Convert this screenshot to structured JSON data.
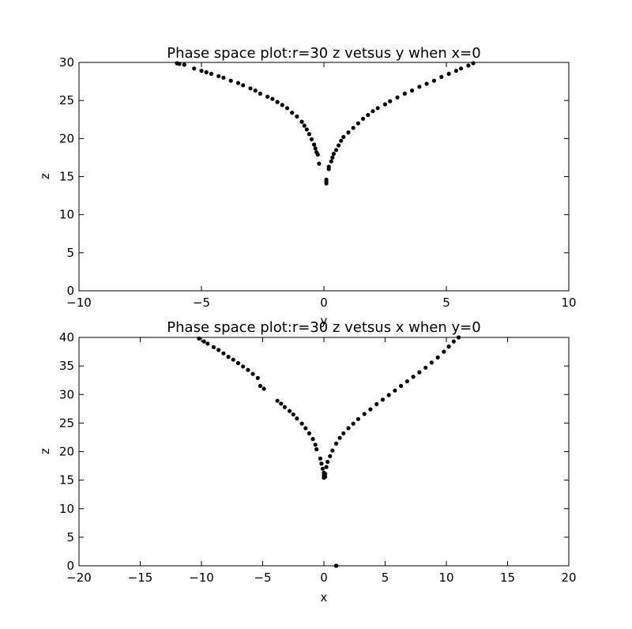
{
  "chart_data": [
    {
      "type": "scatter",
      "title": "Phase space plot:r=30 z vetsus y when x=0",
      "xlabel": "y",
      "ylabel": "z",
      "xlim": [
        -10,
        10
      ],
      "ylim": [
        0,
        30
      ],
      "xticks": [
        -10,
        -5,
        0,
        5,
        10
      ],
      "yticks": [
        0,
        5,
        10,
        15,
        20,
        25,
        30
      ],
      "xtick_labels": [
        "−10",
        "−5",
        "0",
        "5",
        "10"
      ],
      "ytick_labels": [
        "0",
        "5",
        "10",
        "15",
        "20",
        "25",
        "30"
      ],
      "grid": false,
      "marker_color": "#000000",
      "series": [
        {
          "points": [
            [
              -6.0,
              29.9
            ],
            [
              -5.9,
              29.8
            ],
            [
              -5.7,
              29.7
            ],
            [
              -5.3,
              29.2
            ],
            [
              -5.0,
              28.9
            ],
            [
              -4.8,
              28.7
            ],
            [
              -4.6,
              28.5
            ],
            [
              -4.3,
              28.2
            ],
            [
              -4.1,
              28.0
            ],
            [
              -3.8,
              27.6
            ],
            [
              -3.5,
              27.3
            ],
            [
              -3.3,
              27.0
            ],
            [
              -3.0,
              26.6
            ],
            [
              -2.8,
              26.3
            ],
            [
              -2.6,
              25.9
            ],
            [
              -2.3,
              25.5
            ],
            [
              -2.1,
              25.2
            ],
            [
              -1.9,
              24.8
            ],
            [
              -1.7,
              24.4
            ],
            [
              -1.5,
              24.0
            ],
            [
              -1.3,
              23.4
            ],
            [
              -1.1,
              22.9
            ],
            [
              -0.9,
              22.2
            ],
            [
              -0.8,
              21.7
            ],
            [
              -0.7,
              21.2
            ],
            [
              -0.6,
              20.6
            ],
            [
              -0.5,
              19.9
            ],
            [
              -0.4,
              19.2
            ],
            [
              -0.35,
              18.7
            ],
            [
              -0.3,
              18.2
            ],
            [
              -0.25,
              17.9
            ],
            [
              -0.2,
              16.7
            ],
            [
              0.1,
              14.1
            ],
            [
              0.1,
              14.3
            ],
            [
              0.1,
              14.6
            ],
            [
              0.2,
              16.0
            ],
            [
              0.2,
              16.3
            ],
            [
              0.3,
              17.0
            ],
            [
              0.35,
              17.5
            ],
            [
              0.4,
              18.0
            ],
            [
              0.5,
              18.5
            ],
            [
              0.6,
              19.1
            ],
            [
              0.7,
              19.7
            ],
            [
              0.8,
              20.2
            ],
            [
              1.0,
              20.8
            ],
            [
              1.2,
              21.4
            ],
            [
              1.4,
              22.0
            ],
            [
              1.6,
              22.6
            ],
            [
              1.8,
              23.1
            ],
            [
              2.0,
              23.6
            ],
            [
              2.2,
              24.0
            ],
            [
              2.5,
              24.5
            ],
            [
              2.7,
              24.9
            ],
            [
              3.0,
              25.4
            ],
            [
              3.3,
              25.9
            ],
            [
              3.6,
              26.3
            ],
            [
              3.9,
              26.8
            ],
            [
              4.2,
              27.2
            ],
            [
              4.5,
              27.6
            ],
            [
              4.8,
              28.1
            ],
            [
              5.1,
              28.5
            ],
            [
              5.4,
              28.9
            ],
            [
              5.6,
              29.2
            ],
            [
              5.9,
              29.6
            ],
            [
              6.1,
              29.9
            ]
          ]
        }
      ]
    },
    {
      "type": "scatter",
      "title": "Phase space plot:r=30 z vetsus x when y=0",
      "xlabel": "x",
      "ylabel": "z",
      "xlim": [
        -20,
        20
      ],
      "ylim": [
        0,
        40
      ],
      "xticks": [
        -20,
        -15,
        -10,
        -5,
        0,
        5,
        10,
        15,
        20
      ],
      "yticks": [
        0,
        5,
        10,
        15,
        20,
        25,
        30,
        35,
        40
      ],
      "xtick_labels": [
        "−20",
        "−15",
        "−10",
        "−5",
        "0",
        "5",
        "10",
        "15",
        "20"
      ],
      "ytick_labels": [
        "0",
        "5",
        "10",
        "15",
        "20",
        "25",
        "30",
        "35",
        "40"
      ],
      "grid": false,
      "marker_color": "#000000",
      "series": [
        {
          "points": [
            [
              -10.2,
              39.8
            ],
            [
              -9.8,
              39.3
            ],
            [
              -9.5,
              38.9
            ],
            [
              -9.0,
              38.3
            ],
            [
              -8.6,
              37.8
            ],
            [
              -8.2,
              37.2
            ],
            [
              -7.8,
              36.6
            ],
            [
              -7.4,
              36.1
            ],
            [
              -7.0,
              35.5
            ],
            [
              -6.6,
              34.9
            ],
            [
              -6.2,
              34.3
            ],
            [
              -5.8,
              33.6
            ],
            [
              -5.4,
              32.9
            ],
            [
              -5.2,
              31.5
            ],
            [
              -4.9,
              31.0
            ],
            [
              -3.8,
              28.9
            ],
            [
              -3.5,
              28.4
            ],
            [
              -3.2,
              27.8
            ],
            [
              -2.8,
              27.1
            ],
            [
              -2.5,
              26.5
            ],
            [
              -2.2,
              25.8
            ],
            [
              -1.8,
              24.9
            ],
            [
              -1.5,
              24.1
            ],
            [
              -1.2,
              23.2
            ],
            [
              -0.9,
              22.2
            ],
            [
              -0.7,
              21.2
            ],
            [
              -0.6,
              20.4
            ],
            [
              -0.3,
              18.8
            ],
            [
              -0.2,
              17.9
            ],
            [
              -0.1,
              17.0
            ],
            [
              0.0,
              16.3
            ],
            [
              0.0,
              15.8
            ],
            [
              0.0,
              15.4
            ],
            [
              0.1,
              15.6
            ],
            [
              0.1,
              16.1
            ],
            [
              0.2,
              17.3
            ],
            [
              0.3,
              18.2
            ],
            [
              0.5,
              19.2
            ],
            [
              0.7,
              20.2
            ],
            [
              1.0,
              21.4
            ],
            [
              1.3,
              22.4
            ],
            [
              1.6,
              23.2
            ],
            [
              2.0,
              24.1
            ],
            [
              2.4,
              24.9
            ],
            [
              2.8,
              25.7
            ],
            [
              3.3,
              26.6
            ],
            [
              3.8,
              27.4
            ],
            [
              4.3,
              28.3
            ],
            [
              4.8,
              29.1
            ],
            [
              5.3,
              29.9
            ],
            [
              5.8,
              30.7
            ],
            [
              6.3,
              31.5
            ],
            [
              6.8,
              32.3
            ],
            [
              7.3,
              33.1
            ],
            [
              7.8,
              33.9
            ],
            [
              8.3,
              34.7
            ],
            [
              8.8,
              35.6
            ],
            [
              9.3,
              36.5
            ],
            [
              9.8,
              37.5
            ],
            [
              10.2,
              38.4
            ],
            [
              10.6,
              39.3
            ],
            [
              11.0,
              40.0
            ],
            [
              1.0,
              0.0
            ]
          ]
        }
      ]
    }
  ]
}
